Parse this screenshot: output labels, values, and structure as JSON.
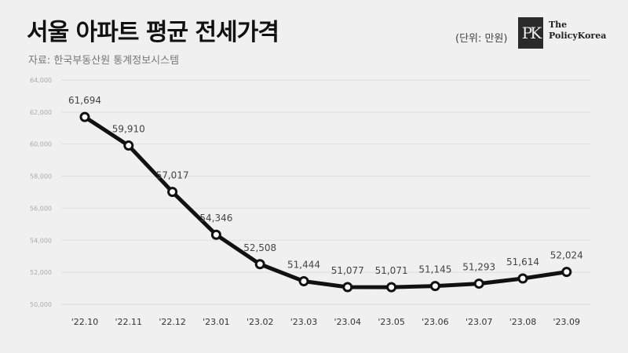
{
  "header": {
    "title": "서울 아파트 평균 전세가격",
    "source": "자료: 한국부동산원 통계정보시스템",
    "unit": "(단위: 만원)"
  },
  "logo": {
    "mark": "PK",
    "line1": "The",
    "line2": "PolicyKorea"
  },
  "chart_data": {
    "type": "line",
    "title": "서울 아파트 평균 전세가격",
    "ylabel": "",
    "xlabel": "",
    "ylim": [
      50000,
      64000
    ],
    "yticks": [
      "50,000",
      "52,000",
      "54,000",
      "56,000",
      "58,000",
      "60,000",
      "62,000",
      "64,000"
    ],
    "ytick_values": [
      50000,
      52000,
      54000,
      56000,
      58000,
      60000,
      62000,
      64000
    ],
    "categories": [
      "'22.10",
      "'22.11",
      "'22.12",
      "'23.01",
      "'23.02",
      "'23.03",
      "'23.04",
      "'23.05",
      "'23.06",
      "'23.07",
      "'23.08",
      "'23.09"
    ],
    "values": [
      61694,
      59910,
      57017,
      54346,
      52508,
      51444,
      51077,
      51071,
      51145,
      51293,
      51614,
      52024
    ],
    "value_labels": [
      "61,694",
      "59,910",
      "57,017",
      "54,346",
      "52,508",
      "51,444",
      "51,077",
      "51,071",
      "51,145",
      "51,293",
      "51,614",
      "52,024"
    ],
    "grid": true,
    "colors": {
      "line": "#111111",
      "marker_fill": "#ffffff",
      "grid": "#dddddd"
    }
  }
}
